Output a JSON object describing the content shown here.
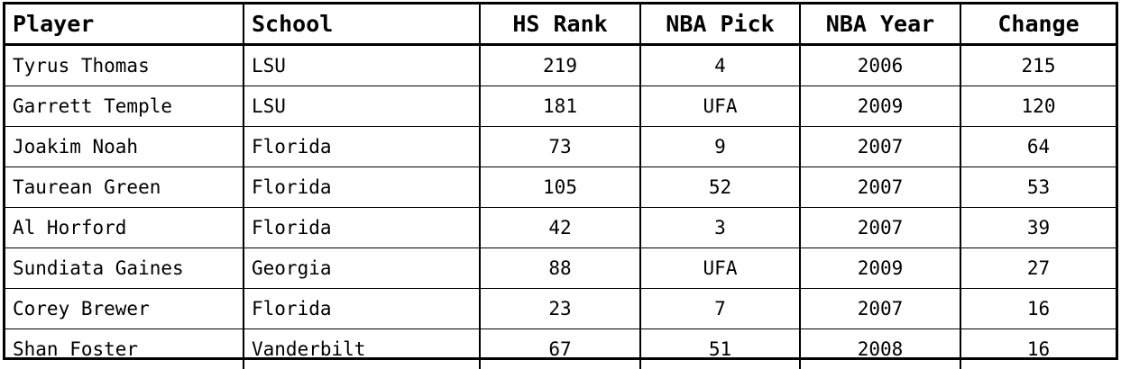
{
  "table": {
    "headers": {
      "player": "Player",
      "school": "School",
      "hs_rank": "HS Rank",
      "nba_pick": "NBA Pick",
      "nba_year": "NBA Year",
      "change": "Change"
    },
    "rows": [
      {
        "player": "Tyrus Thomas",
        "school": "LSU",
        "hs_rank": "219",
        "nba_pick": "4",
        "nba_year": "2006",
        "change": "215"
      },
      {
        "player": "Garrett Temple",
        "school": "LSU",
        "hs_rank": "181",
        "nba_pick": "UFA",
        "nba_year": "2009",
        "change": "120"
      },
      {
        "player": "Joakim Noah",
        "school": "Florida",
        "hs_rank": "73",
        "nba_pick": "9",
        "nba_year": "2007",
        "change": "64"
      },
      {
        "player": "Taurean Green",
        "school": "Florida",
        "hs_rank": "105",
        "nba_pick": "52",
        "nba_year": "2007",
        "change": "53"
      },
      {
        "player": "Al Horford",
        "school": "Florida",
        "hs_rank": "42",
        "nba_pick": "3",
        "nba_year": "2007",
        "change": "39"
      },
      {
        "player": "Sundiata Gaines",
        "school": "Georgia",
        "hs_rank": "88",
        "nba_pick": "UFA",
        "nba_year": "2009",
        "change": "27"
      },
      {
        "player": "Corey Brewer",
        "school": "Florida",
        "hs_rank": "23",
        "nba_pick": "7",
        "nba_year": "2007",
        "change": "16"
      },
      {
        "player": "Shan Foster",
        "school": "Vanderbilt",
        "hs_rank": "67",
        "nba_pick": "51",
        "nba_year": "2008",
        "change": "16"
      }
    ]
  }
}
